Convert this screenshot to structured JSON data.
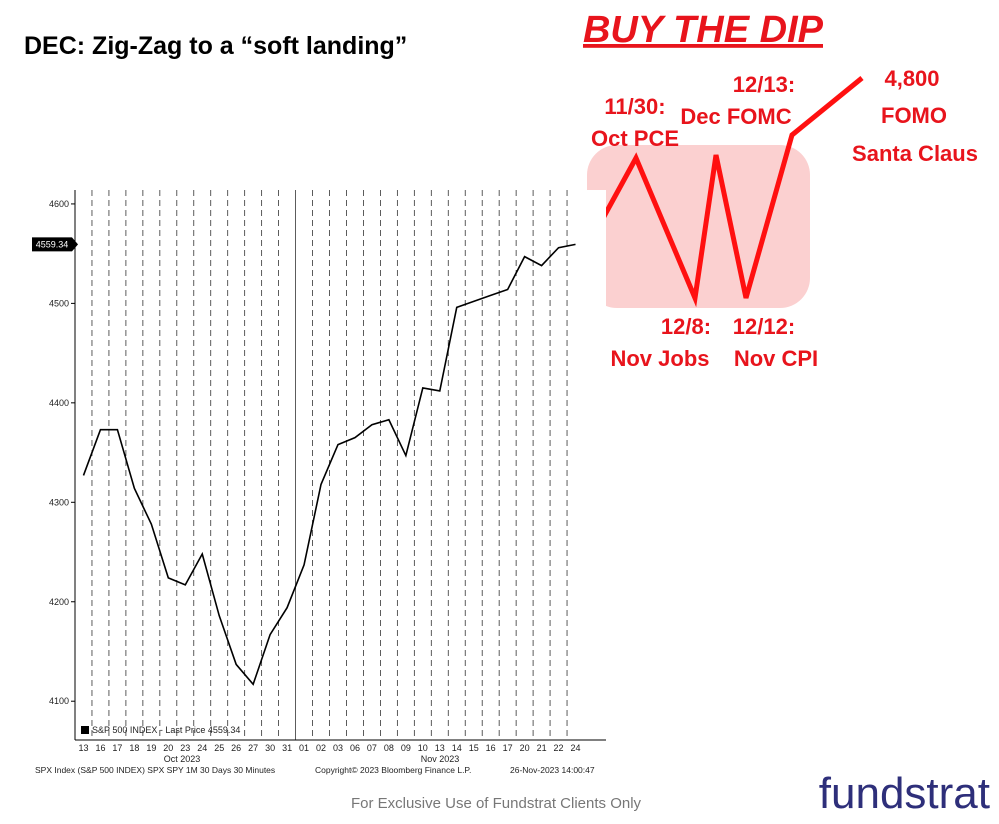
{
  "slide_title": "DEC: Zig-Zag to a “soft landing”",
  "headline": "BUY THE DIP",
  "annotations": [
    "11/30:",
    "Oct PCE",
    "12/13:",
    "Dec FOMC",
    "4,800",
    "FOMO",
    "Santa Claus",
    "12/8:",
    "Nov Jobs",
    "12/12:",
    "Nov CPI"
  ],
  "disclaimer": "For Exclusive Use of Fundstrat Clients Only",
  "logo": "fundstrat",
  "chart_data": {
    "type": "line",
    "categories": [
      "13",
      "16",
      "17",
      "18",
      "19",
      "20",
      "23",
      "24",
      "25",
      "26",
      "27",
      "30",
      "31",
      "01",
      "02",
      "03",
      "06",
      "07",
      "08",
      "09",
      "10",
      "13",
      "14",
      "15",
      "16",
      "17",
      "20",
      "21",
      "22",
      "24"
    ],
    "month_labels": [
      "Oct 2023",
      "Nov 2023"
    ],
    "series": [
      {
        "name": "S&P 500 INDEX - Last Price 4559.34",
        "color": "#000000",
        "values": [
          4327,
          4373,
          4373,
          4314,
          4278,
          4224,
          4217,
          4248,
          4186,
          4137,
          4117,
          4167,
          4194,
          4237,
          4318,
          4358,
          4365,
          4378,
          4383,
          4347,
          4415,
          4412,
          4496,
          4502,
          4508,
          4514,
          4547,
          4538,
          4556,
          4559.34
        ]
      }
    ],
    "ylim": [
      4061,
      4614
    ],
    "yticks": [
      4100,
      4200,
      4300,
      4400,
      4500,
      4600
    ],
    "footer": [
      "SPX Index (S&P 500 INDEX) SPX SPY 1M 30 Days 30 Minutes",
      "Copyright© 2023 Bloomberg Finance L.P.",
      "26-Nov-2023 14:00:47"
    ]
  }
}
